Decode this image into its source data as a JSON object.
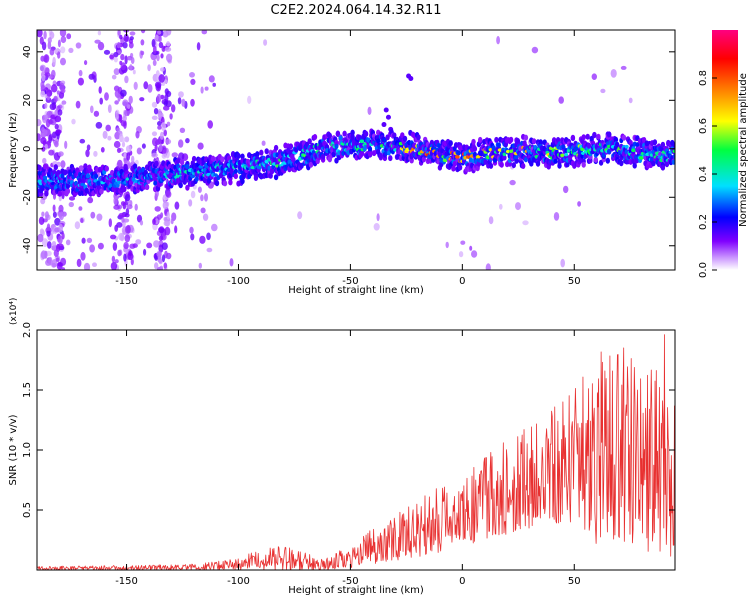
{
  "title": "C2E2.2024.064.14.32.R11",
  "chart_data": [
    {
      "type": "heatmap",
      "xlabel": "Height of straight line (km)",
      "ylabel": "Frequency (Hz)",
      "xlim": [
        -190,
        95
      ],
      "ylim": [
        -50,
        49
      ],
      "xticks": [
        -150,
        -100,
        -50,
        0,
        50
      ],
      "yticks": [
        -40,
        -20,
        0,
        20,
        40
      ],
      "colorbar": {
        "label": "Normalized spectral amplitude",
        "range": [
          0.0,
          1.0
        ],
        "ticks": [
          "0.0",
          "0.2",
          "0.4",
          "0.6",
          "0.8"
        ],
        "colors": [
          "#ffffff",
          "#cc99ff",
          "#8000ff",
          "#0000ff",
          "#00e0ff",
          "#00ff40",
          "#ffff00",
          "#ff8000",
          "#ff0000",
          "#ff0080"
        ]
      },
      "ridge": {
        "x": [
          -185,
          -170,
          -155,
          -140,
          -125,
          -110,
          -95,
          -80,
          -70,
          -60,
          -50,
          -40,
          -30,
          -20,
          -10,
          0,
          10,
          20,
          30,
          40,
          50,
          60,
          70,
          80,
          90
        ],
        "y": [
          -13,
          -13,
          -13,
          -12,
          -10,
          -9,
          -8,
          -5,
          -2,
          1,
          1,
          2,
          1,
          0,
          -2,
          -4,
          -2,
          -1,
          -1,
          -2,
          -1,
          0,
          0,
          -2,
          -3
        ]
      },
      "ridge_peak_amplitude": {
        "x": [
          -185,
          -150,
          -110,
          -75,
          -50,
          -30,
          -20,
          -10,
          0,
          10,
          30,
          50,
          70,
          90
        ],
        "amp": [
          0.35,
          0.4,
          0.45,
          0.55,
          0.5,
          0.55,
          0.95,
          0.9,
          0.95,
          0.8,
          0.7,
          0.6,
          0.55,
          0.5
        ]
      }
    },
    {
      "type": "line",
      "xlabel": "Height of straight line (km)",
      "ylabel": "SNR (10 * v/v)",
      "y_multiplier": "(x10⁴)",
      "xlim": [
        -190,
        95
      ],
      "ylim": [
        0,
        2.0
      ],
      "xticks": [
        -150,
        -100,
        -50,
        0,
        50
      ],
      "yticks": [
        0.5,
        1.0,
        1.5,
        2.0
      ],
      "series": [
        {
          "color": "#e83030",
          "envelope": {
            "x": [
              -190,
              -150,
              -120,
              -100,
              -90,
              -80,
              -70,
              -60,
              -50,
              -40,
              -30,
              -20,
              -10,
              0,
              10,
              20,
              30,
              40,
              50,
              60,
              70,
              80,
              90,
              95
            ],
            "ymin": [
              0.0,
              0.0,
              0.0,
              0.0,
              0.0,
              0.0,
              0.0,
              0.0,
              0.02,
              0.05,
              0.08,
              0.1,
              0.15,
              0.2,
              0.25,
              0.3,
              0.35,
              0.4,
              0.35,
              0.2,
              0.25,
              0.15,
              0.1,
              0.1
            ],
            "ymax": [
              0.03,
              0.04,
              0.05,
              0.1,
              0.18,
              0.2,
              0.15,
              0.1,
              0.22,
              0.35,
              0.45,
              0.6,
              0.7,
              0.8,
              0.95,
              1.1,
              1.2,
              1.35,
              1.5,
              1.8,
              1.9,
              1.7,
              2.0,
              1.5
            ]
          }
        }
      ]
    }
  ]
}
